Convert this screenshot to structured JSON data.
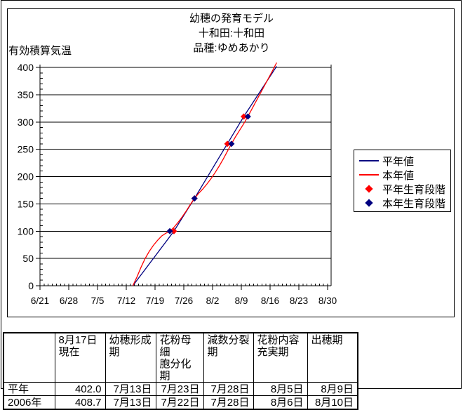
{
  "chart": {
    "title_lines": [
      "幼穂の発育モデル",
      "十和田:十和田",
      "品種:ゆめあかり"
    ],
    "y_axis_label": "有効積算気温"
  },
  "chart_data": {
    "type": "line",
    "title": "幼穂の発育モデル",
    "subtitle_lines": [
      "十和田:十和田",
      "品種:ゆめあかり"
    ],
    "ylabel": "有効積算気温",
    "ylim": [
      0,
      400
    ],
    "y_ticks": [
      0,
      50,
      100,
      150,
      200,
      250,
      300,
      350,
      400
    ],
    "x_tick_labels": [
      "6/21",
      "6/28",
      "7/5",
      "7/12",
      "7/19",
      "7/26",
      "8/2",
      "8/9",
      "8/16",
      "8/23",
      "8/30"
    ],
    "x_unit": "days since 6/21",
    "grid": "horizontal",
    "legend_position": "right",
    "series": [
      {
        "id": "heinen-line",
        "name": "平年値",
        "type": "line",
        "color": "#000080",
        "points": [
          [
            22,
            0
          ],
          [
            32,
            100
          ],
          [
            37,
            160
          ],
          [
            45,
            260
          ],
          [
            49,
            310
          ],
          [
            57,
            402
          ]
        ]
      },
      {
        "id": "honnen-line",
        "name": "本年値",
        "type": "line",
        "color": "#FF0000",
        "points": [
          [
            22,
            0
          ],
          [
            23,
            16
          ],
          [
            24,
            34
          ],
          [
            25,
            50
          ],
          [
            26,
            63
          ],
          [
            27,
            74
          ],
          [
            28,
            83
          ],
          [
            29,
            91
          ],
          [
            30,
            96
          ],
          [
            31,
            100
          ],
          [
            32,
            107
          ],
          [
            33,
            116
          ],
          [
            34,
            126
          ],
          [
            35,
            137
          ],
          [
            36,
            149
          ],
          [
            37,
            160
          ],
          [
            38,
            169
          ],
          [
            39,
            177
          ],
          [
            40,
            186
          ],
          [
            41,
            196
          ],
          [
            42,
            207
          ],
          [
            43,
            219
          ],
          [
            44,
            232
          ],
          [
            45,
            246
          ],
          [
            46,
            260
          ],
          [
            47,
            273
          ],
          [
            48,
            285
          ],
          [
            49,
            297
          ],
          [
            50,
            310
          ],
          [
            51,
            324
          ],
          [
            52,
            338
          ],
          [
            53,
            352
          ],
          [
            54,
            366
          ],
          [
            55,
            380
          ],
          [
            56,
            394
          ],
          [
            57,
            408.7
          ]
        ]
      },
      {
        "id": "heinen-stage-markers",
        "name": "平年生育段階",
        "type": "scatter",
        "marker": "diamond",
        "color": "#FF0000",
        "points": [
          [
            32,
            100
          ],
          [
            37,
            160
          ],
          [
            45,
            260
          ],
          [
            49,
            310
          ]
        ],
        "dates": [
          "7月23日",
          "7月28日",
          "8月5日",
          "8月9日"
        ]
      },
      {
        "id": "honnen-stage-markers",
        "name": "本年生育段階",
        "type": "scatter",
        "marker": "diamond",
        "color": "#000080",
        "points": [
          [
            31,
            100
          ],
          [
            37,
            160
          ],
          [
            46,
            260
          ],
          [
            50,
            310
          ]
        ],
        "dates": [
          "7月22日",
          "7月28日",
          "8月6日",
          "8月10日"
        ]
      }
    ]
  },
  "legend": {
    "items": [
      {
        "label": "平年値",
        "swatch": "line",
        "color": "#000080"
      },
      {
        "label": "本年値",
        "swatch": "line",
        "color": "#FF0000"
      },
      {
        "label": "平年生育段階",
        "swatch": "diamond",
        "color": "#FF0000"
      },
      {
        "label": "本年生育段階",
        "swatch": "diamond",
        "color": "#000080"
      }
    ]
  },
  "table": {
    "headers": [
      "",
      "8月17日\n現在",
      "幼穂形成\n期",
      "花粉母細\n胞分化期",
      "減数分裂\n期",
      "花粉内容\n充実期",
      "出穂期"
    ],
    "rows": [
      {
        "label": "平年",
        "cells": [
          "402.0",
          "7月13日",
          "7月23日",
          "7月28日",
          "8月5日",
          "8月9日"
        ]
      },
      {
        "label": "2006年",
        "cells": [
          "408.7",
          "7月13日",
          "7月22日",
          "7月28日",
          "8月6日",
          "8月10日"
        ]
      }
    ]
  }
}
